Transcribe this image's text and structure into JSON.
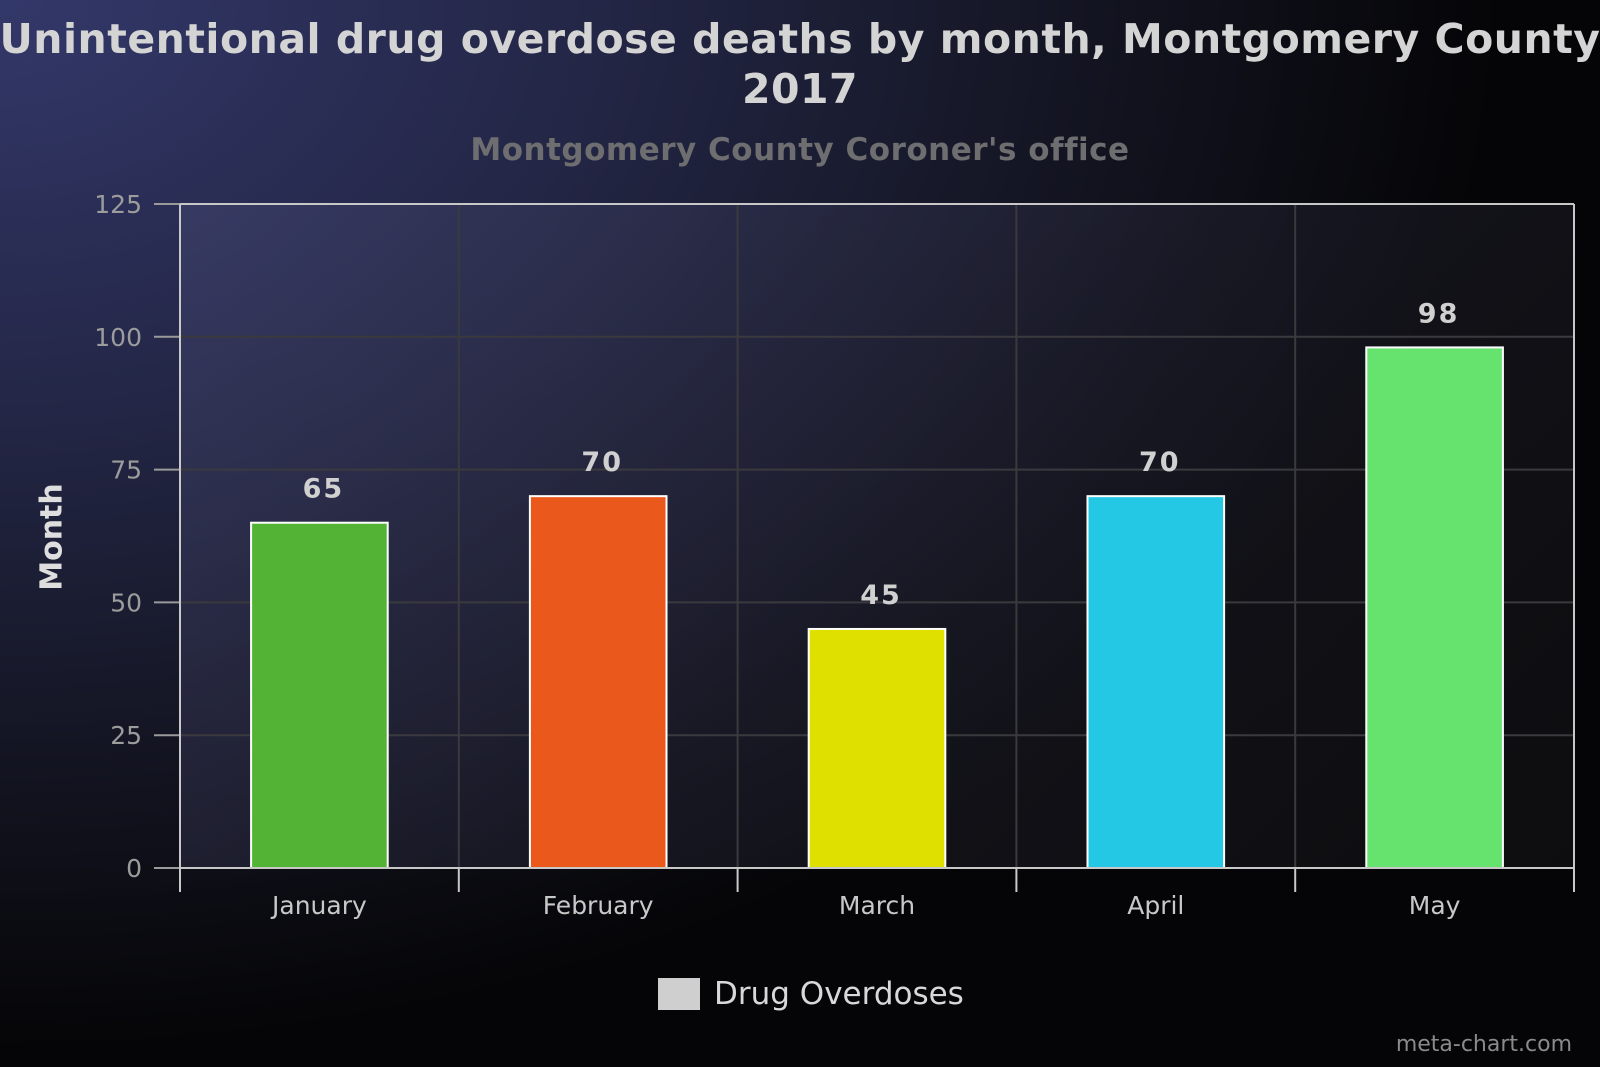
{
  "chart_data": {
    "type": "bar",
    "title": "Unintentional drug overdose deaths by month, Montgomery County\n2017",
    "subtitle": "Montgomery County Coroner's office",
    "xlabel": "",
    "ylabel": "Month",
    "categories": [
      "January",
      "February",
      "March",
      "April",
      "May"
    ],
    "series": [
      {
        "name": "Drug Overdoses",
        "values": [
          65,
          70,
          45,
          70,
          98
        ],
        "colors": [
          "#52b334",
          "#ea581c",
          "#e0e000",
          "#25c8e4",
          "#66e26e"
        ]
      }
    ],
    "ylim": [
      0,
      125
    ],
    "yticks": [
      0,
      25,
      50,
      75,
      100,
      125
    ],
    "grid": true,
    "legend_position": "bottom-center",
    "data_labels": true
  },
  "watermark": "meta-chart.com"
}
